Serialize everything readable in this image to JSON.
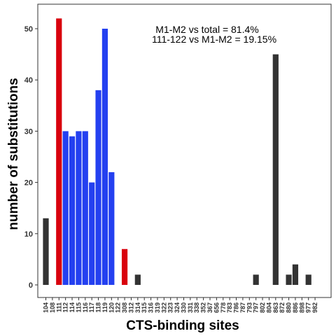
{
  "chart_data": {
    "type": "bar",
    "xlabel": "CTS-binding sites",
    "ylabel": "number of substitutions",
    "ylim": [
      0,
      55
    ],
    "yticks": [
      0,
      10,
      20,
      30,
      40,
      50
    ],
    "grid": false,
    "categories": [
      "104",
      "108",
      "111",
      "112",
      "114",
      "115",
      "116",
      "117",
      "118",
      "119",
      "120",
      "122",
      "308",
      "312",
      "314",
      "315",
      "316",
      "319",
      "322",
      "323",
      "324",
      "330",
      "331",
      "338",
      "352",
      "367",
      "656",
      "778",
      "783",
      "786",
      "787",
      "793",
      "797",
      "802",
      "804",
      "863",
      "872",
      "880",
      "886",
      "898",
      "977",
      "982"
    ],
    "values": [
      13,
      0,
      52,
      30,
      29,
      30,
      30,
      20,
      38,
      50,
      22,
      0,
      7,
      0,
      2,
      0,
      0,
      0,
      0,
      0,
      0,
      0,
      0,
      0,
      0,
      0,
      0,
      0,
      0,
      0,
      0,
      0,
      2,
      0,
      0,
      45,
      0,
      2,
      4,
      0,
      2,
      0
    ],
    "bar_colors": [
      "#333333",
      "#333333",
      "#d9000d",
      "#2440f0",
      "#2440f0",
      "#2440f0",
      "#2440f0",
      "#2440f0",
      "#2440f0",
      "#2440f0",
      "#2440f0",
      "#333333",
      "#d9000d",
      "#333333",
      "#333333",
      "#333333",
      "#333333",
      "#333333",
      "#333333",
      "#333333",
      "#333333",
      "#333333",
      "#333333",
      "#333333",
      "#333333",
      "#333333",
      "#333333",
      "#333333",
      "#333333",
      "#333333",
      "#333333",
      "#333333",
      "#333333",
      "#333333",
      "#333333",
      "#333333",
      "#333333",
      "#333333",
      "#333333",
      "#333333",
      "#333333",
      "#333333"
    ],
    "annotations": [
      "M1-M2 vs total = 81.4%",
      "111-122 vs M1-M2 = 19.15%"
    ]
  }
}
